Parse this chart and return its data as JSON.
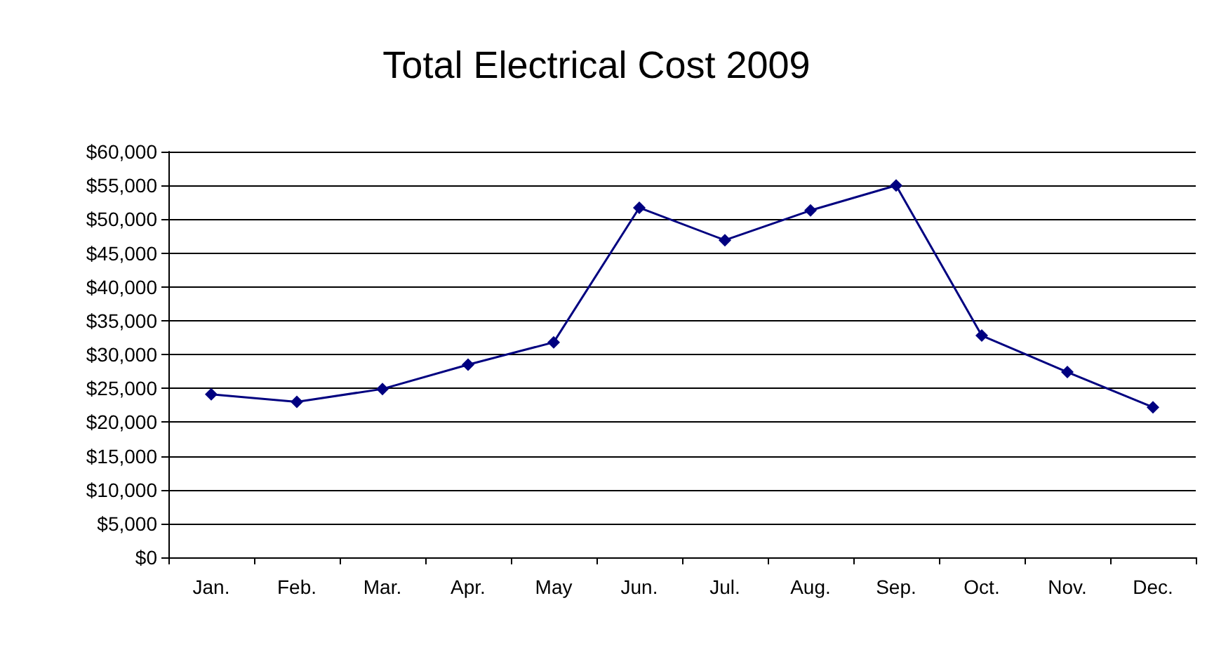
{
  "chart_data": {
    "type": "line",
    "title": "Total Electrical Cost 2009",
    "categories": [
      "Jan.",
      "Feb.",
      "Mar.",
      "Apr.",
      "May",
      "Jun.",
      "Jul.",
      "Aug.",
      "Sep.",
      "Oct.",
      "Nov.",
      "Dec."
    ],
    "series": [
      {
        "color": "#000080",
        "values": [
          24100,
          23000,
          24900,
          28500,
          31800,
          51700,
          46900,
          51300,
          55000,
          32800,
          27400,
          22200
        ]
      }
    ],
    "ylim": [
      0,
      60000
    ],
    "yticks": [
      {
        "value": 0,
        "label": "$0"
      },
      {
        "value": 5000,
        "label": "$5,000"
      },
      {
        "value": 10000,
        "label": "$10,000"
      },
      {
        "value": 15000,
        "label": "$15,000"
      },
      {
        "value": 20000,
        "label": "$20,000"
      },
      {
        "value": 25000,
        "label": "$25,000"
      },
      {
        "value": 30000,
        "label": "$30,000"
      },
      {
        "value": 35000,
        "label": "$35,000"
      },
      {
        "value": 40000,
        "label": "$40,000"
      },
      {
        "value": 45000,
        "label": "$45,000"
      },
      {
        "value": 50000,
        "label": "$50,000"
      },
      {
        "value": 55000,
        "label": "$55,000"
      },
      {
        "value": 60000,
        "label": "$60,000"
      }
    ],
    "grid": "y",
    "marker": "diamond",
    "line_style": "solid"
  }
}
